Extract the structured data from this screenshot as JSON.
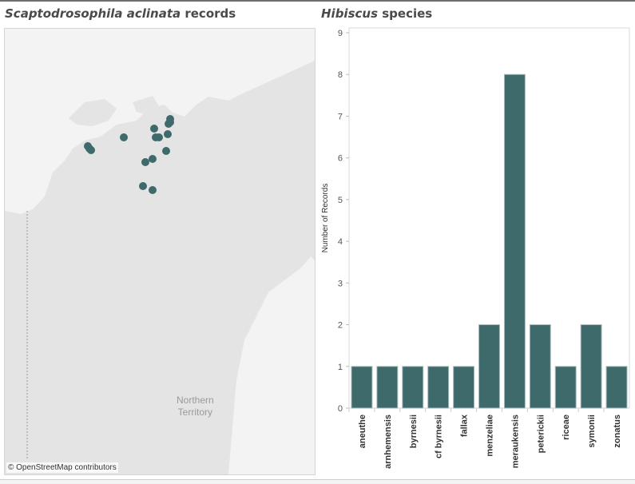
{
  "map_panel": {
    "title_italic": "Scaptodrosophila aclinata",
    "title_rest": " records",
    "region_label_line1": "Northern",
    "region_label_line2": "Territory",
    "attribution": "© OpenStreetMap contributors",
    "marker_color": "#3e6a6b"
  },
  "chart_panel": {
    "title_italic": "Hibiscus",
    "title_rest": " species"
  },
  "chart_data": {
    "type": "bar",
    "title": "Hibiscus species",
    "ylabel": "Number of Records",
    "xlabel": "",
    "ylim": [
      0,
      9
    ],
    "yticks": [
      0,
      1,
      2,
      3,
      4,
      5,
      6,
      7,
      8,
      9
    ],
    "categories": [
      "aneuthe",
      "arnhemensis",
      "byrnesii",
      "cf byrnesii",
      "fallax",
      "menzeliae",
      "meraukensis",
      "peterickii",
      "riceae",
      "symonii",
      "zonatus"
    ],
    "values": [
      1,
      1,
      1,
      1,
      1,
      2,
      8,
      2,
      1,
      2,
      1
    ],
    "bar_color": "#3e6a6b",
    "grid": false
  }
}
